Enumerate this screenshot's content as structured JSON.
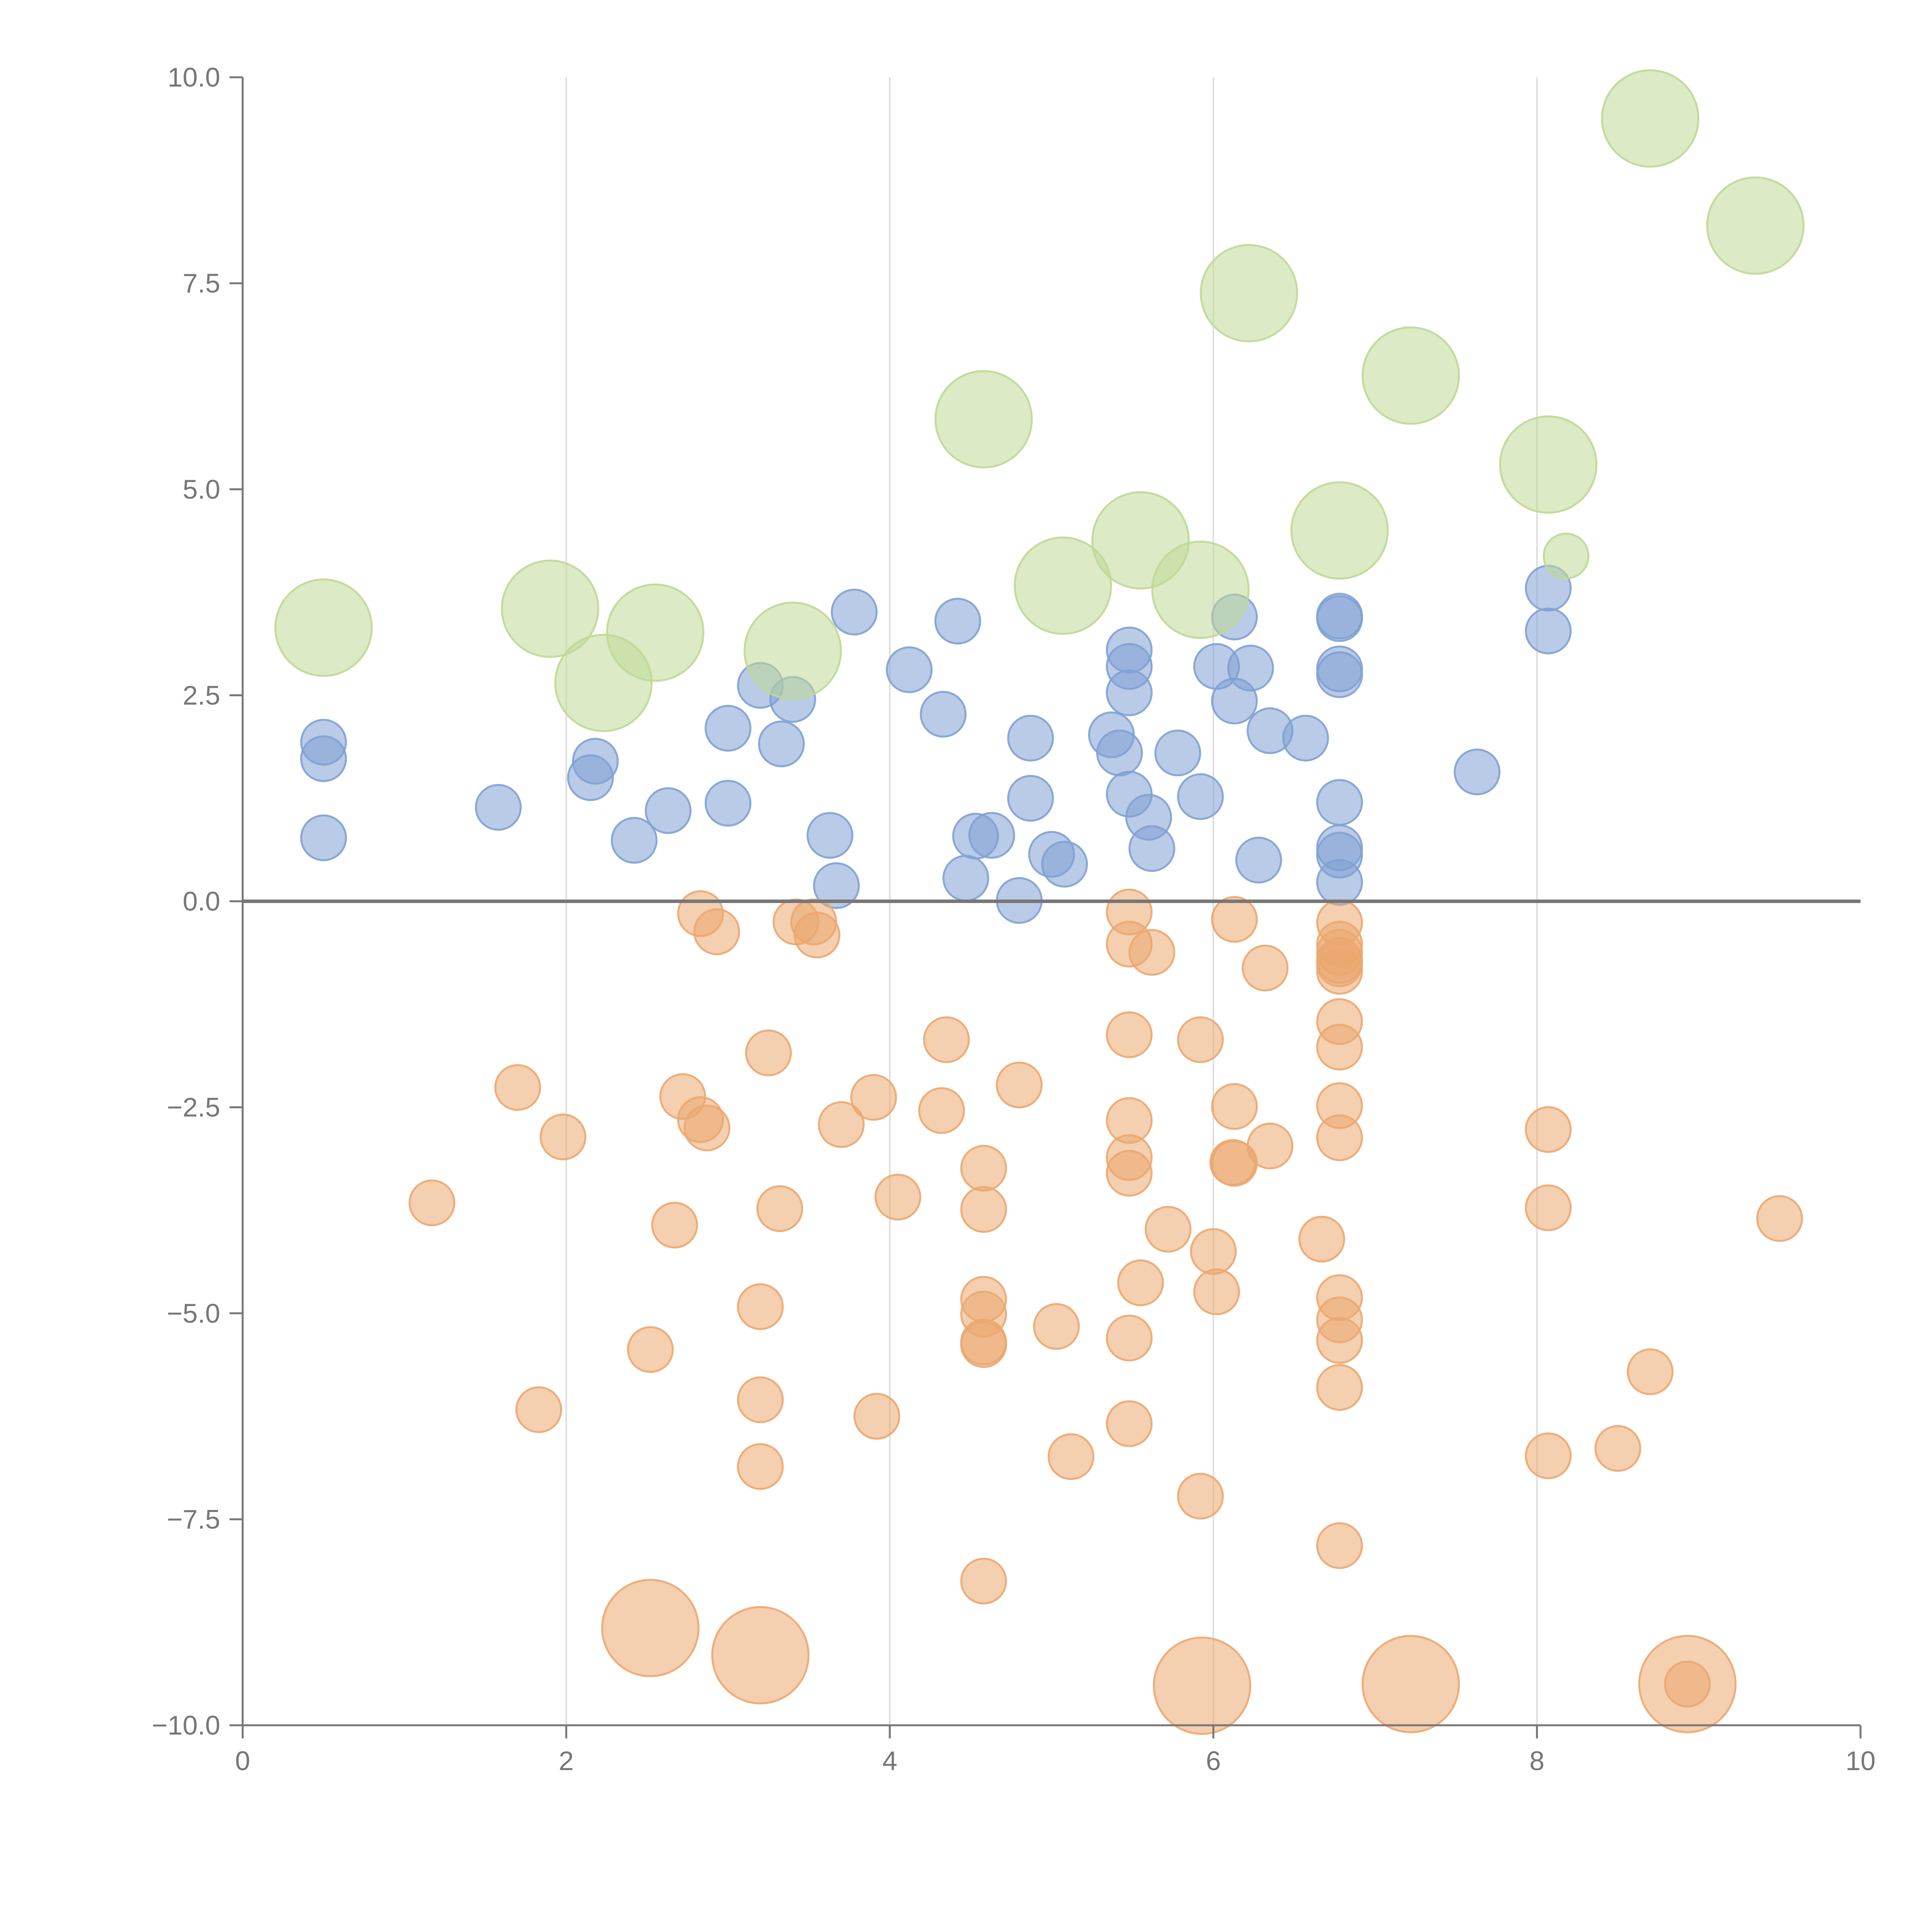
{
  "chart_data": {
    "type": "scatter",
    "title": "",
    "xlabel": "",
    "ylabel": "",
    "xlim": [
      0,
      10
    ],
    "ylim": [
      -10,
      10
    ],
    "grid": "vertical",
    "zero_line": 0,
    "x_ticks": [
      "0",
      "2",
      "4",
      "6",
      "8",
      "10"
    ],
    "y_ticks": [
      "−10.0",
      "−7.5",
      "−5.0",
      "−2.5",
      "0.0",
      "2.5",
      "5.0",
      "7.5",
      "10.0"
    ],
    "series": [
      {
        "name": "blue",
        "color": "#7fa1d3",
        "size": 1,
        "points": [
          [
            0.5,
            1.93
          ],
          [
            0.5,
            1.73
          ],
          [
            0.5,
            0.77
          ],
          [
            1.58,
            1.14
          ],
          [
            2.15,
            1.5
          ],
          [
            2.18,
            1.7
          ],
          [
            2.42,
            0.74
          ],
          [
            2.63,
            1.1
          ],
          [
            3.0,
            2.1
          ],
          [
            3.0,
            1.19
          ],
          [
            3.2,
            2.62
          ],
          [
            3.33,
            1.91
          ],
          [
            3.4,
            2.45
          ],
          [
            3.63,
            0.8
          ],
          [
            3.67,
            0.19
          ],
          [
            3.78,
            3.51
          ],
          [
            4.12,
            2.81
          ],
          [
            4.33,
            2.27
          ],
          [
            4.42,
            3.4
          ],
          [
            4.47,
            0.28
          ],
          [
            4.53,
            0.79
          ],
          [
            4.63,
            0.8
          ],
          [
            4.8,
            0.01
          ],
          [
            4.87,
            1.98
          ],
          [
            4.87,
            1.25
          ],
          [
            5.0,
            0.57
          ],
          [
            5.08,
            0.45
          ],
          [
            5.37,
            2.02
          ],
          [
            5.42,
            1.8
          ],
          [
            5.48,
            3.05
          ],
          [
            5.48,
            2.85
          ],
          [
            5.48,
            2.53
          ],
          [
            5.48,
            1.3
          ],
          [
            5.6,
            1.02
          ],
          [
            5.62,
            0.64
          ],
          [
            5.78,
            1.8
          ],
          [
            5.92,
            1.27
          ],
          [
            6.02,
            2.85
          ],
          [
            6.13,
            3.45
          ],
          [
            6.13,
            2.43
          ],
          [
            6.23,
            2.83
          ],
          [
            6.28,
            0.5
          ],
          [
            6.35,
            2.07
          ],
          [
            6.57,
            1.98
          ],
          [
            6.78,
            3.46
          ],
          [
            6.78,
            3.43
          ],
          [
            6.78,
            2.82
          ],
          [
            6.78,
            2.75
          ],
          [
            6.78,
            1.2
          ],
          [
            6.78,
            0.65
          ],
          [
            6.78,
            0.56
          ],
          [
            6.78,
            0.23
          ],
          [
            7.63,
            1.57
          ],
          [
            8.07,
            3.8
          ],
          [
            8.07,
            3.28
          ]
        ]
      },
      {
        "name": "orange",
        "color": "#eba76f",
        "size": 1,
        "points": [
          [
            1.17,
            -3.66
          ],
          [
            1.7,
            -2.26
          ],
          [
            1.83,
            -6.17
          ],
          [
            1.98,
            -2.86
          ],
          [
            2.52,
            -5.44
          ],
          [
            2.67,
            -3.93
          ],
          [
            2.72,
            -2.37
          ],
          [
            2.83,
            -0.15
          ],
          [
            2.83,
            -2.65
          ],
          [
            2.87,
            -2.75
          ],
          [
            2.93,
            -0.37
          ],
          [
            3.2,
            -4.92
          ],
          [
            3.2,
            -6.05
          ],
          [
            3.2,
            -6.86
          ],
          [
            3.25,
            -1.84
          ],
          [
            3.32,
            -3.73
          ],
          [
            3.42,
            -0.25
          ],
          [
            3.53,
            -0.25
          ],
          [
            3.55,
            -0.41
          ],
          [
            3.7,
            -2.71
          ],
          [
            3.9,
            -2.38
          ],
          [
            3.92,
            -6.25
          ],
          [
            4.05,
            -3.59
          ],
          [
            4.32,
            -2.54
          ],
          [
            4.35,
            -1.68
          ],
          [
            4.58,
            -3.24
          ],
          [
            4.58,
            -3.74
          ],
          [
            4.58,
            -4.83
          ],
          [
            4.58,
            -5.01
          ],
          [
            4.58,
            -5.35
          ],
          [
            4.58,
            -5.38
          ],
          [
            4.58,
            -8.25
          ],
          [
            4.8,
            -2.23
          ],
          [
            5.03,
            -5.16
          ],
          [
            5.12,
            -6.74
          ],
          [
            5.48,
            -0.13
          ],
          [
            5.48,
            -0.52
          ],
          [
            5.48,
            -1.62
          ],
          [
            5.48,
            -2.66
          ],
          [
            5.48,
            -3.11
          ],
          [
            5.48,
            -3.3
          ],
          [
            5.48,
            -5.3
          ],
          [
            5.48,
            -6.34
          ],
          [
            5.55,
            -4.63
          ],
          [
            5.62,
            -0.62
          ],
          [
            5.72,
            -3.98
          ],
          [
            5.92,
            -1.68
          ],
          [
            5.92,
            -7.22
          ],
          [
            6.0,
            -4.25
          ],
          [
            6.02,
            -4.74
          ],
          [
            6.12,
            -3.17
          ],
          [
            6.13,
            -3.18
          ],
          [
            6.13,
            -0.22
          ],
          [
            6.13,
            -2.49
          ],
          [
            6.32,
            -0.81
          ],
          [
            6.35,
            -2.97
          ],
          [
            6.67,
            -4.1
          ],
          [
            6.78,
            -0.26
          ],
          [
            6.78,
            -0.52
          ],
          [
            6.78,
            -0.62
          ],
          [
            6.78,
            -0.72
          ],
          [
            6.78,
            -0.85
          ],
          [
            6.78,
            -0.76
          ],
          [
            6.78,
            -1.46
          ],
          [
            6.78,
            -1.77
          ],
          [
            6.78,
            -2.48
          ],
          [
            6.78,
            -2.87
          ],
          [
            6.78,
            -4.81
          ],
          [
            6.78,
            -5.08
          ],
          [
            6.78,
            -5.33
          ],
          [
            6.78,
            -5.9
          ],
          [
            6.78,
            -7.82
          ],
          [
            8.07,
            -2.77
          ],
          [
            8.07,
            -3.72
          ],
          [
            8.07,
            -6.73
          ],
          [
            8.5,
            -6.64
          ],
          [
            8.7,
            -5.71
          ],
          [
            8.93,
            -9.5
          ],
          [
            9.5,
            -3.85
          ]
        ]
      },
      {
        "name": "orange-large",
        "color": "#eba76f",
        "size": 2.15,
        "points": [
          [
            2.52,
            -8.82
          ],
          [
            3.2,
            -9.15
          ],
          [
            5.93,
            -9.52
          ],
          [
            7.22,
            -9.5
          ],
          [
            8.93,
            -9.5
          ]
        ]
      },
      {
        "name": "green",
        "color": "#bfd895",
        "size": 2.15,
        "points": [
          [
            0.5,
            3.32
          ],
          [
            1.9,
            3.55
          ],
          [
            2.23,
            2.65
          ],
          [
            2.55,
            3.26
          ],
          [
            3.4,
            3.04
          ],
          [
            4.58,
            5.85
          ],
          [
            5.07,
            3.83
          ],
          [
            5.55,
            4.38
          ],
          [
            5.92,
            3.78
          ],
          [
            6.22,
            7.38
          ],
          [
            6.78,
            4.5
          ],
          [
            7.22,
            6.38
          ],
          [
            8.07,
            5.3
          ],
          [
            8.7,
            9.5
          ],
          [
            9.35,
            8.2
          ]
        ]
      },
      {
        "name": "green-small",
        "color": "#bfd895",
        "size": 1,
        "points": [
          [
            8.18,
            4.19
          ]
        ]
      }
    ]
  }
}
